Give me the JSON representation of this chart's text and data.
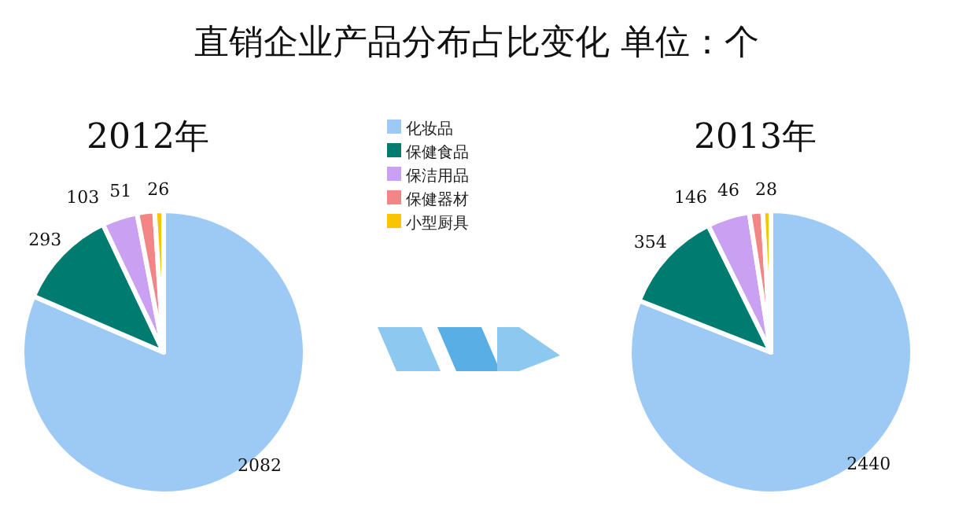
{
  "chart_data": [
    {
      "type": "pie",
      "title": "2012年",
      "annotations": [
        "直销企业产品分布占比变化 单位：个"
      ],
      "categories": [
        "化妆品",
        "保健食品",
        "保洁用品",
        "保健器材",
        "小型厨具"
      ],
      "values": [
        2082,
        293,
        103,
        51,
        26
      ],
      "colors": [
        "#9ccaf4",
        "#007b70",
        "#c9a0f2",
        "#f28585",
        "#f7c600"
      ],
      "data_labels": true,
      "legend": "right"
    },
    {
      "type": "pie",
      "title": "2013年",
      "categories": [
        null,
        null,
        null,
        null,
        null
      ],
      "values": [
        2440,
        354,
        146,
        46,
        28
      ],
      "colors": [
        "#9ccaf4",
        "#007b70",
        "#c9a0f2",
        "#f28585",
        "#f7c600"
      ],
      "data_labels": true
    }
  ]
}
